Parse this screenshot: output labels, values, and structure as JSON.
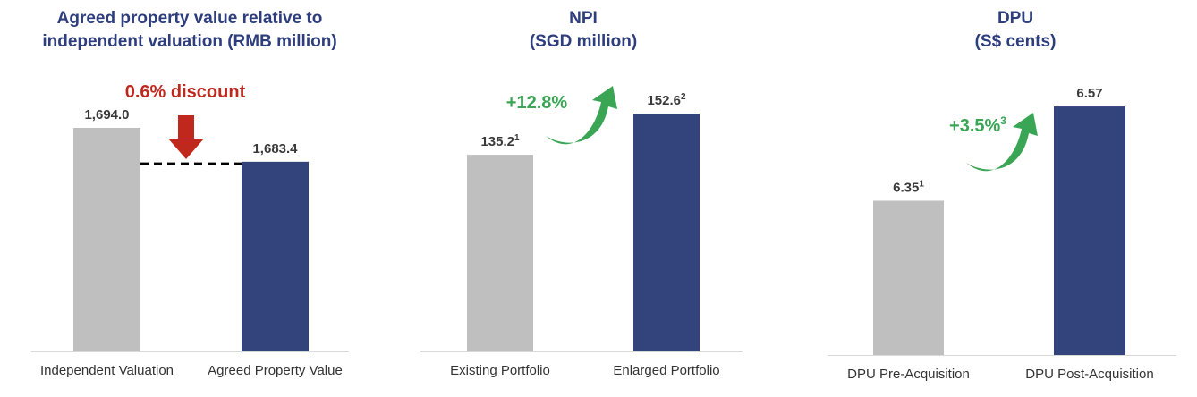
{
  "chart_data": [
    {
      "type": "bar",
      "title": [
        "Agreed property value relative to",
        "independent valuation (RMB million)"
      ],
      "categories": [
        "Independent Valuation",
        "Agreed Property Value"
      ],
      "values": [
        1694.0,
        1683.4
      ],
      "labels": [
        "1,694.0",
        "1,683.4"
      ],
      "superscripts": [
        "",
        ""
      ],
      "colors": [
        "#bfbfbf",
        "#33437c"
      ],
      "ylim": [
        1624,
        1708
      ],
      "grid": false,
      "annotation": {
        "text": "0.6% discount",
        "color": "#c0281e",
        "icon": "down-arrow-icon"
      },
      "connector": "dashed-line"
    },
    {
      "type": "bar",
      "title": [
        "NPI",
        "(SGD million)"
      ],
      "categories": [
        "Existing Portfolio",
        "Enlarged Portfolio"
      ],
      "values": [
        135.2,
        152.6
      ],
      "labels": [
        "135.2",
        "152.6"
      ],
      "superscripts": [
        "1",
        "2"
      ],
      "colors": [
        "#bfbfbf",
        "#33437c"
      ],
      "ylim": [
        52,
        165.5
      ],
      "grid": false,
      "annotation": {
        "text": "+12.8%",
        "sup": "",
        "color": "#3aa655",
        "icon": "curved-up-arrow-icon"
      }
    },
    {
      "type": "bar",
      "title": [
        "DPU",
        "(S$ cents)"
      ],
      "categories": [
        "DPU Pre-Acquisition",
        "DPU Post-Acquisition"
      ],
      "values": [
        6.35,
        6.57
      ],
      "labels": [
        "6.35",
        "6.57"
      ],
      "superscripts": [
        "1",
        ""
      ],
      "colors": [
        "#bfbfbf",
        "#33437c"
      ],
      "ylim": [
        5.99,
        6.616
      ],
      "grid": false,
      "annotation": {
        "text": "+3.5%",
        "sup": "3",
        "color": "#3aa655",
        "icon": "curved-up-arrow-icon"
      }
    }
  ]
}
